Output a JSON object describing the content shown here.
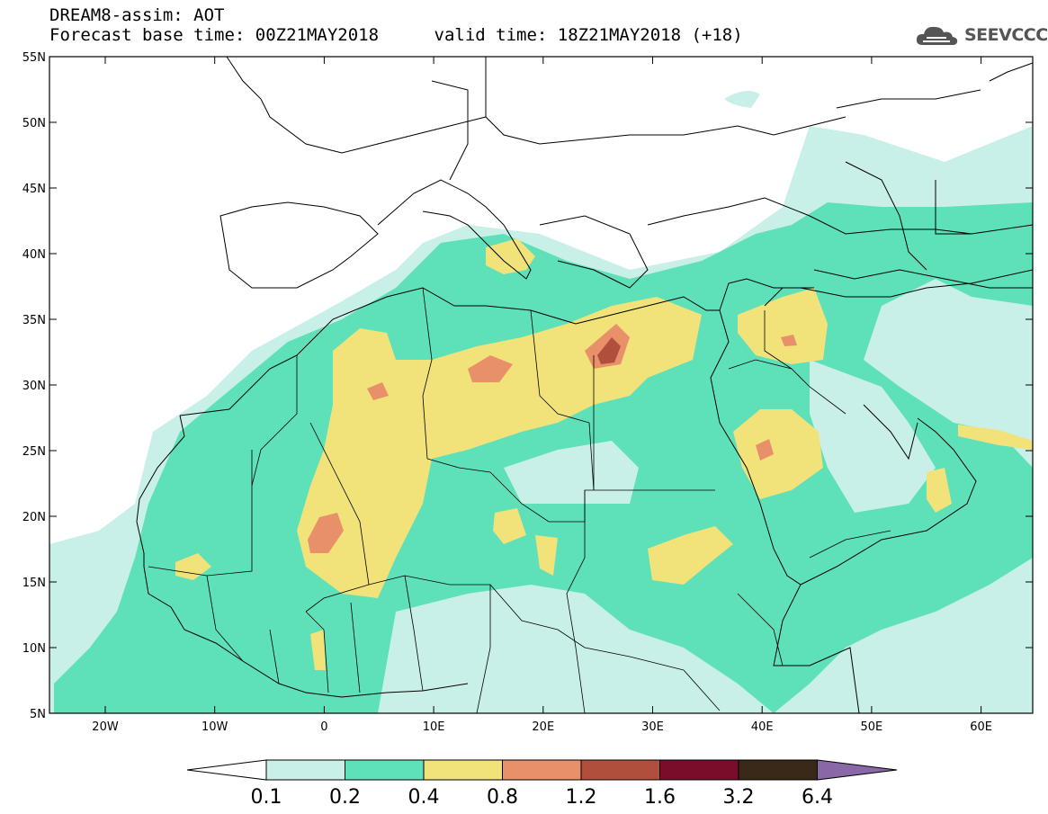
{
  "header": {
    "title": "DREAM8-assim: AOT",
    "base_time": "Forecast base time: 00Z21MAY2018",
    "valid_time": "valid time: 18Z21MAY2018 (+18)"
  },
  "logo": {
    "text": "SEEVCCC",
    "icon": "cloud-icon"
  },
  "axes": {
    "lat_labels": [
      "55N",
      "50N",
      "45N",
      "40N",
      "35N",
      "30N",
      "25N",
      "20N",
      "15N",
      "10N",
      "5N"
    ],
    "lon_labels": [
      "20W",
      "10W",
      "0",
      "10E",
      "20E",
      "30E",
      "40E",
      "50E",
      "60E"
    ]
  },
  "colorbar": {
    "labels": [
      "0.1",
      "0.2",
      "0.4",
      "0.8",
      "1.2",
      "1.6",
      "3.2",
      "6.4"
    ],
    "colors": [
      "#c8f0e8",
      "#5ee0b8",
      "#f2e27a",
      "#e8906a",
      "#b0503c",
      "#7a0e2a",
      "#3a2818",
      "#8a68a8"
    ]
  },
  "colors": {
    "land_line": "#000000",
    "background": "#ffffff"
  }
}
